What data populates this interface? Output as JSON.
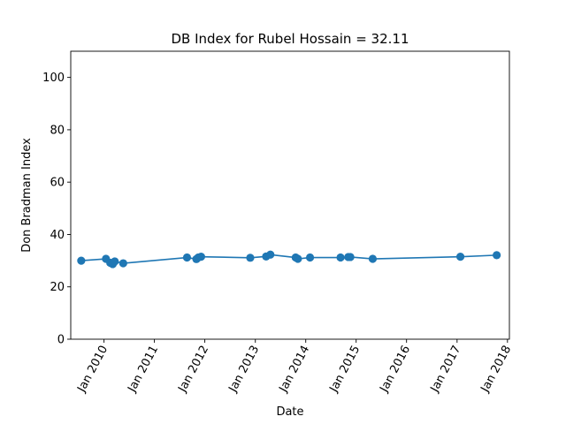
{
  "chart_data": {
    "type": "line",
    "title": "DB Index for Rubel Hossain = 32.11",
    "xlabel": "Date",
    "ylabel": "Don Bradman Index",
    "ylim": [
      0,
      110
    ],
    "xlim": [
      "2009-05-05",
      "2018-01-15"
    ],
    "y_ticks": [
      0,
      20,
      40,
      60,
      80,
      100
    ],
    "x_ticks": [
      {
        "date": "2010-01-01",
        "label": "Jan 2010"
      },
      {
        "date": "2011-01-01",
        "label": "Jan 2011"
      },
      {
        "date": "2012-01-01",
        "label": "Jan 2012"
      },
      {
        "date": "2013-01-01",
        "label": "Jan 2013"
      },
      {
        "date": "2014-01-01",
        "label": "Jan 2014"
      },
      {
        "date": "2015-01-01",
        "label": "Jan 2015"
      },
      {
        "date": "2016-01-01",
        "label": "Jan 2016"
      },
      {
        "date": "2017-01-01",
        "label": "Jan 2017"
      },
      {
        "date": "2018-01-01",
        "label": "Jan 2018"
      }
    ],
    "grid": false,
    "series": [
      {
        "color": "#1f77b4",
        "x": [
          "2009-07-20",
          "2010-01-15",
          "2010-02-15",
          "2010-03-05",
          "2010-03-20",
          "2010-05-20",
          "2011-08-25",
          "2011-11-01",
          "2011-11-15",
          "2011-12-05",
          "2012-11-25",
          "2013-03-20",
          "2013-04-20",
          "2013-10-20",
          "2013-11-05",
          "2014-02-01",
          "2014-09-10",
          "2014-11-05",
          "2014-11-20",
          "2015-05-01",
          "2017-01-25",
          "2017-10-15"
        ],
        "y": [
          30.0,
          30.7,
          29.2,
          28.7,
          29.7,
          29.0,
          31.2,
          30.6,
          31.2,
          31.5,
          31.1,
          31.6,
          32.3,
          31.2,
          30.7,
          31.2,
          31.2,
          31.4,
          31.4,
          30.7,
          31.5,
          32.1
        ]
      }
    ]
  }
}
